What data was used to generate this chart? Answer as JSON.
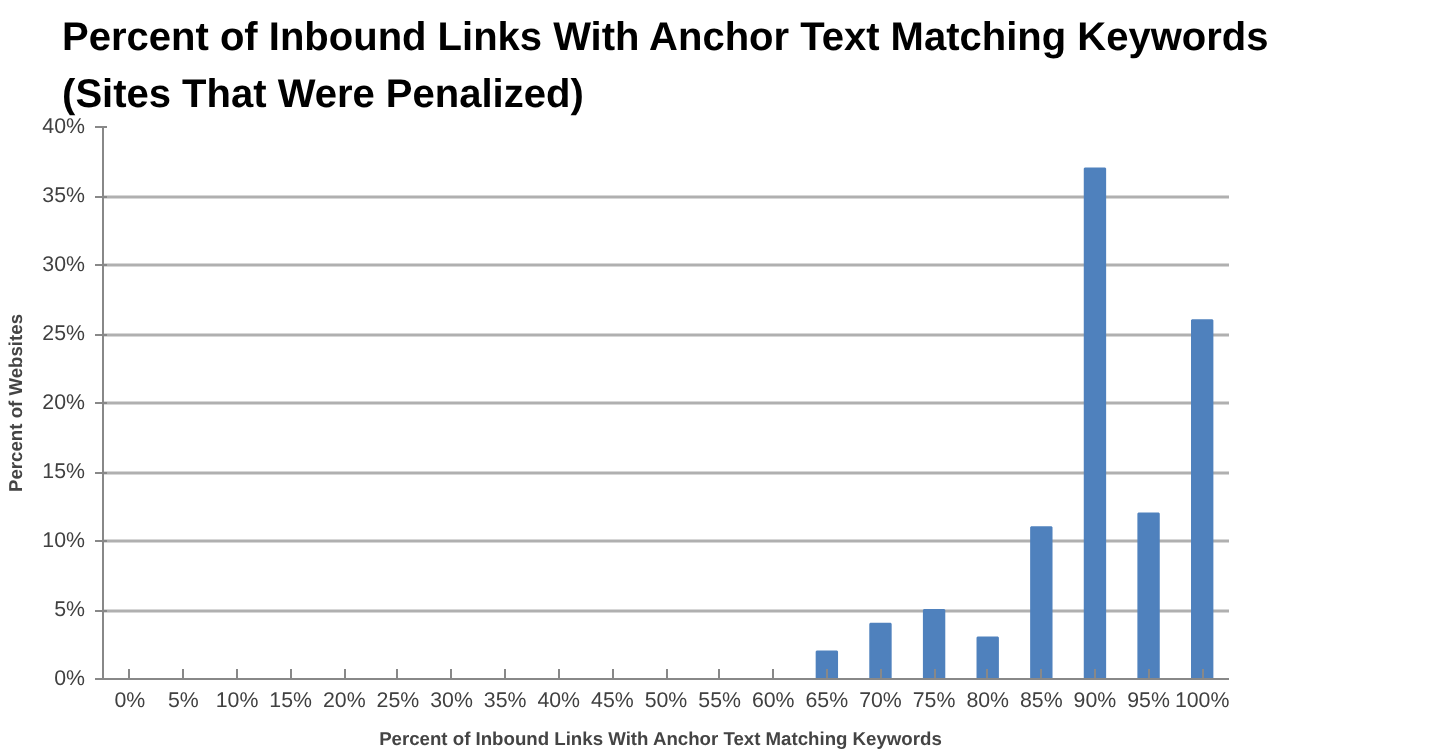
{
  "chart_data": {
    "type": "bar",
    "title": "Percent of Inbound Links With Anchor Text Matching Keywords\n(Sites That Were Penalized)",
    "xlabel": "Percent of Inbound  Links With Anchor Text Matching  Keywords",
    "ylabel": "Percent of Websites",
    "categories": [
      "0%",
      "5%",
      "10%",
      "15%",
      "20%",
      "25%",
      "30%",
      "35%",
      "40%",
      "45%",
      "50%",
      "55%",
      "60%",
      "65%",
      "70%",
      "75%",
      "80%",
      "85%",
      "90%",
      "95%",
      "100%"
    ],
    "values": [
      0,
      0,
      0,
      0,
      0,
      0,
      0,
      0,
      0,
      0,
      0,
      0,
      0,
      2,
      4,
      5,
      3,
      11,
      37,
      12,
      26
    ],
    "color": "#4f81bd",
    "ylim": [
      0,
      40
    ],
    "yticks": [
      {
        "value": 0,
        "label": "0%"
      },
      {
        "value": 5,
        "label": "5%"
      },
      {
        "value": 10,
        "label": "10%"
      },
      {
        "value": 15,
        "label": "15%"
      },
      {
        "value": 20,
        "label": "20%"
      },
      {
        "value": 25,
        "label": "25%"
      },
      {
        "value": 30,
        "label": "30%"
      },
      {
        "value": 35,
        "label": "35%"
      },
      {
        "value": 40,
        "label": "40%"
      }
    ],
    "grid": "y"
  }
}
